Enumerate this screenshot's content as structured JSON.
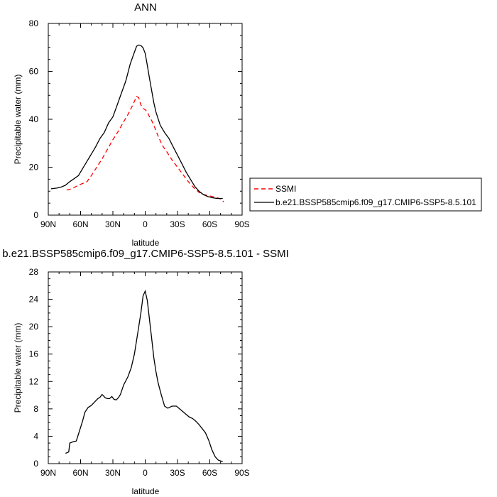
{
  "chart_data": [
    {
      "type": "line",
      "title": "ANN",
      "xlabel": "latitude",
      "ylabel": "Precipitable water (mm)",
      "xlim": [
        90,
        -90
      ],
      "ylim": [
        0,
        80
      ],
      "x_ticks": [
        90,
        60,
        30,
        0,
        -30,
        -60,
        -90
      ],
      "x_tick_labels": [
        "90N",
        "60N",
        "30N",
        "0",
        "30S",
        "60S",
        "90S"
      ],
      "y_ticks": [
        0,
        20,
        40,
        60,
        80
      ],
      "y_tick_labels": [
        "0",
        "20",
        "40",
        "60",
        "80"
      ],
      "grid": false,
      "legend_position": "right",
      "series": [
        {
          "name": "SSMI",
          "color": "#ff0000",
          "dash": "dashed",
          "x": [
            73,
            70,
            66,
            62,
            58,
            54,
            50,
            45,
            40,
            35,
            30,
            25,
            20,
            16,
            12,
            8,
            6,
            4,
            2,
            0,
            -2,
            -4,
            -6,
            -8,
            -12,
            -16,
            -20,
            -25,
            -30,
            -35,
            -40,
            -45,
            -50,
            -55,
            -60,
            -65,
            -70,
            -73
          ],
          "values": [
            10.5,
            10.8,
            11.5,
            12.5,
            13.2,
            14,
            16.5,
            20,
            23.5,
            27.5,
            31.5,
            35,
            39,
            42,
            45.5,
            49.5,
            49,
            46,
            44.5,
            44,
            43,
            41,
            39.5,
            37.5,
            33,
            29,
            26.5,
            23,
            20,
            17,
            14,
            11.5,
            9.5,
            8.5,
            8,
            7.5,
            6.8,
            5.5
          ]
        },
        {
          "name": "b.e21.BSSP585cmip6.f09_g17.CMIP6-SSP5-8.5.101",
          "color": "#000000",
          "dash": "solid",
          "x": [
            87.5,
            82,
            78,
            74,
            70,
            66,
            62,
            58,
            54,
            50,
            46,
            42,
            38,
            34,
            30,
            26,
            22,
            18,
            14,
            10,
            8,
            6,
            4,
            2,
            0,
            -2,
            -4,
            -6,
            -8,
            -10,
            -14,
            -18,
            -22,
            -26,
            -30,
            -34,
            -38,
            -42,
            -46,
            -50,
            -54,
            -58,
            -62,
            -66,
            -70,
            -72
          ],
          "values": [
            11,
            11.3,
            11.7,
            12.5,
            14,
            15.2,
            16.5,
            19.5,
            22.5,
            25.5,
            28.5,
            32,
            34.5,
            38.5,
            41,
            46,
            51,
            56,
            63,
            68,
            70.5,
            71,
            70.8,
            69.8,
            67.5,
            62.5,
            57,
            52,
            47,
            43,
            37.5,
            34.5,
            32,
            28.5,
            25,
            21.5,
            18,
            15,
            12,
            10,
            8.6,
            7.8,
            7.3,
            7,
            6.9,
            7
          ]
        }
      ]
    },
    {
      "type": "line",
      "title": "b.e21.BSSP585cmip6.f09_g17.CMIP6-SSP5-8.5.101 - SSMI",
      "xlabel": "latitude",
      "ylabel": "Precipitable water (mm)",
      "xlim": [
        90,
        -90
      ],
      "ylim": [
        0,
        28
      ],
      "x_ticks": [
        90,
        60,
        30,
        0,
        -30,
        -60,
        -90
      ],
      "x_tick_labels": [
        "90N",
        "60N",
        "30N",
        "0",
        "30S",
        "60S",
        "90S"
      ],
      "y_ticks": [
        0,
        4,
        8,
        12,
        16,
        20,
        24,
        28
      ],
      "y_tick_labels": [
        "0",
        "4",
        "8",
        "12",
        "16",
        "20",
        "24",
        "28"
      ],
      "grid": false,
      "series": [
        {
          "color": "#000000",
          "dash": "solid",
          "x": [
            74,
            71,
            70,
            67,
            64,
            62,
            60,
            58,
            56,
            53,
            50,
            47,
            44,
            42,
            40,
            37,
            35,
            33,
            31,
            29,
            27,
            25,
            23,
            20,
            16,
            13,
            10,
            7,
            4,
            2,
            0,
            -2,
            -4,
            -6,
            -8,
            -10,
            -12,
            -15,
            -18,
            -21,
            -25,
            -29,
            -32,
            -35,
            -38,
            -41,
            -44,
            -47,
            -50,
            -53,
            -56,
            -59,
            -62,
            -65,
            -68,
            -72
          ],
          "values": [
            1.5,
            1.7,
            3,
            3.2,
            3.3,
            4.3,
            5.3,
            6.3,
            7.5,
            8.2,
            8.5,
            9,
            9.5,
            9.7,
            10.1,
            9.6,
            9.5,
            9.5,
            9.8,
            9.4,
            9.3,
            9.6,
            10.1,
            11.5,
            12.7,
            14,
            16,
            19,
            22,
            24.5,
            25.2,
            23.8,
            21,
            18.3,
            15.5,
            13.4,
            11.8,
            10,
            8.4,
            8.1,
            8.4,
            8.4,
            8,
            7.6,
            7.2,
            6.8,
            6.6,
            6.2,
            5.7,
            5.1,
            4.5,
            3.4,
            2,
            1,
            0.5,
            0.3
          ]
        }
      ]
    }
  ]
}
